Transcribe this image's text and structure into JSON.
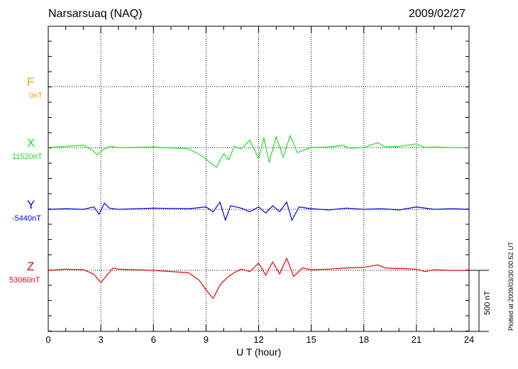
{
  "header": {
    "station": "Narsarsuaq (NAQ)",
    "date": "2009/02/27"
  },
  "plotted_note": "Plotted at 2009/03/30 00:52 UT",
  "scale_label": "500 nT",
  "colors": {
    "F": "#f5a000",
    "X": "#22dd22",
    "Y": "#0000ee",
    "Z": "#ee0000",
    "axis": "#000000",
    "grid": "#000000"
  },
  "chart_data": {
    "type": "line",
    "title": "Narsarsuaq (NAQ)",
    "xlabel": "U T (hour)",
    "ylabel": "",
    "xlim": [
      0,
      24
    ],
    "xticks": [
      "0",
      "3",
      "6",
      "9",
      "12",
      "15",
      "18",
      "21",
      "24"
    ],
    "grid": true,
    "scale_bar_nT": 500,
    "series": [
      {
        "name": "F",
        "baseline_label": "0nT",
        "x": [],
        "y": []
      },
      {
        "name": "X",
        "baseline_label": "11520nT",
        "x": [
          0,
          1,
          2,
          2.5,
          2.8,
          3.1,
          3.5,
          4,
          6,
          8,
          8.8,
          9.2,
          9.6,
          10,
          10.3,
          10.6,
          11,
          11.5,
          12,
          12.3,
          12.6,
          13,
          13.4,
          13.8,
          14.2,
          15,
          16,
          16.8,
          17.2,
          18,
          18.8,
          19.2,
          20,
          21,
          21.5,
          22,
          23,
          24
        ],
        "y": [
          0,
          10,
          20,
          -20,
          -60,
          -20,
          10,
          0,
          5,
          -10,
          -70,
          -120,
          -160,
          -50,
          -100,
          10,
          -10,
          60,
          -90,
          80,
          -120,
          90,
          -80,
          100,
          -40,
          0,
          5,
          20,
          -5,
          0,
          40,
          5,
          10,
          30,
          0,
          5,
          0,
          0
        ]
      },
      {
        "name": "Y",
        "baseline_label": "-5440nT",
        "x": [
          0,
          1,
          2,
          2.6,
          2.9,
          3.2,
          3.5,
          4,
          6,
          8,
          9,
          9.4,
          9.8,
          10.1,
          10.4,
          11,
          11.5,
          12,
          12.4,
          12.8,
          13.2,
          13.6,
          13.9,
          14.3,
          15,
          16,
          17,
          18,
          19,
          20,
          21,
          22,
          23,
          24
        ],
        "y": [
          0,
          5,
          0,
          20,
          -40,
          50,
          10,
          0,
          10,
          5,
          20,
          -20,
          60,
          -90,
          30,
          10,
          -20,
          20,
          -30,
          30,
          -20,
          60,
          -90,
          20,
          5,
          -5,
          10,
          0,
          5,
          -5,
          20,
          0,
          5,
          0
        ]
      },
      {
        "name": "Z",
        "baseline_label": "53060nT",
        "x": [
          0,
          1,
          2,
          2.6,
          3,
          3.4,
          3.7,
          4,
          6,
          8,
          8.6,
          9,
          9.4,
          9.8,
          10.2,
          10.6,
          11,
          11.5,
          12,
          12.4,
          12.8,
          13.2,
          13.6,
          14,
          14.5,
          15,
          16,
          17,
          18,
          18.8,
          19.2,
          20,
          21,
          21.5,
          22,
          23,
          24
        ],
        "y": [
          0,
          10,
          5,
          -30,
          -100,
          -30,
          20,
          10,
          0,
          -20,
          -80,
          -160,
          -230,
          -120,
          -60,
          -20,
          10,
          -10,
          60,
          -40,
          70,
          -30,
          100,
          -50,
          20,
          5,
          10,
          20,
          25,
          45,
          20,
          15,
          10,
          -10,
          5,
          0,
          0
        ]
      }
    ]
  }
}
